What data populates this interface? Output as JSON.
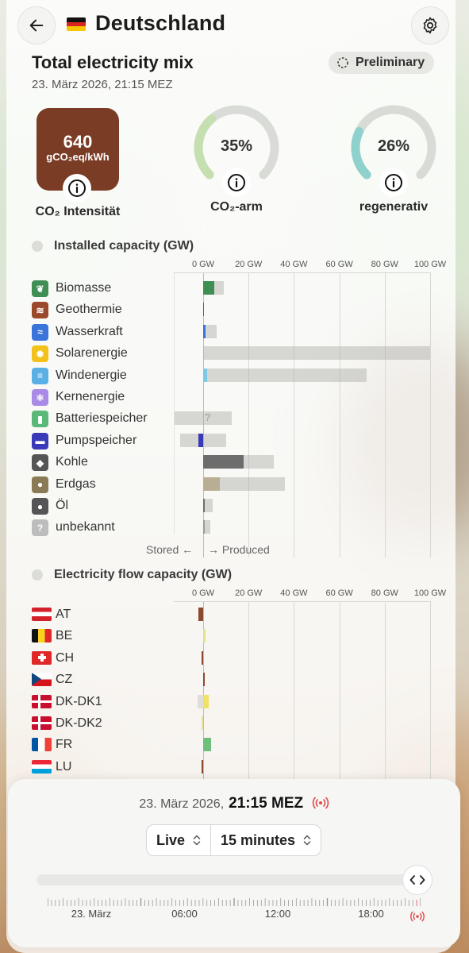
{
  "header": {
    "title": "Deutschland"
  },
  "mix": {
    "title": "Total electricity mix",
    "date": "23. März 2026, 21:15 MEZ",
    "badge": "Preliminary"
  },
  "metrics": {
    "co2_value": "640",
    "co2_unit": "gCO₂eq/kWh",
    "co2_label": "CO₂ Intensität",
    "low_carbon_value": "35%",
    "low_carbon_fraction": 0.35,
    "low_carbon_label": "CO₂-arm",
    "renewable_value": "26%",
    "renewable_fraction": 0.26,
    "renewable_label": "regenerativ"
  },
  "installed": {
    "title": "Installed capacity (GW)",
    "axis": [
      "0 GW",
      "20 GW",
      "40 GW",
      "60 GW",
      "80 GW",
      "100 GW"
    ],
    "stored_label": "Stored ←",
    "produced_label": "→ Produced",
    "unknown_mark": "?",
    "sources": [
      {
        "name": "Biomasse",
        "icon": "leaf-icon",
        "color": "#3f8f55",
        "produced": 4.8,
        "capacity": 9.2
      },
      {
        "name": "Geothermie",
        "icon": "geothermal-icon",
        "color": "#9a4a2a",
        "produced": 0.0,
        "capacity": 0.05
      },
      {
        "name": "Wasserkraft",
        "icon": "water-icon",
        "color": "#3a73d9",
        "produced": 1.0,
        "capacity": 6.0
      },
      {
        "name": "Solarenergie",
        "icon": "sun-icon",
        "color": "#f2c21b",
        "produced": 0.0,
        "capacity": 100
      },
      {
        "name": "Windenergie",
        "icon": "wind-icon",
        "color": "#7ec8ea",
        "produced": 1.8,
        "capacity": 72
      },
      {
        "name": "Kernenergie",
        "icon": "atom-icon",
        "color": "#a98ae6",
        "produced": 0.0,
        "capacity": 0
      },
      {
        "name": "Batteriespeicher",
        "icon": "battery-icon",
        "color": "#5ab978",
        "produced": 0.0,
        "capacity": 12.5,
        "stored": 12.5
      },
      {
        "name": "Pumpspeicher",
        "icon": "pump-storage-icon",
        "color": "#3a3ab8",
        "produced": 0.0,
        "capacity": 10,
        "stored": 10,
        "stored_used": 2.2
      },
      {
        "name": "Kohle",
        "icon": "coal-icon",
        "color": "#6d6d6d",
        "produced": 18,
        "capacity": 31
      },
      {
        "name": "Erdgas",
        "icon": "gas-icon",
        "color": "#b9ae94",
        "produced": 7.5,
        "capacity": 36
      },
      {
        "name": "Öl",
        "icon": "oil-icon",
        "color": "#6e6e6e",
        "produced": 0.4,
        "capacity": 4.2
      },
      {
        "name": "unbekannt",
        "icon": "unknown-icon",
        "color": "#9a9a9a",
        "produced": 0.2,
        "capacity": 3.3
      }
    ]
  },
  "flow": {
    "title": "Electricity flow capacity (GW)",
    "axis": [
      "0 GW",
      "20 GW",
      "40 GW",
      "60 GW",
      "80 GW",
      "100 GW"
    ],
    "countries": [
      {
        "code": "AT",
        "flag": "flag-at-icon",
        "color": "#8b4a2e",
        "value": -2.0,
        "capacity": 0
      },
      {
        "code": "BE",
        "flag": "flag-be-icon",
        "color": "#e5e08a",
        "value": 1.0,
        "capacity": 0
      },
      {
        "code": "CH",
        "flag": "flag-ch-icon",
        "color": "#8b4a2e",
        "value": -0.8,
        "capacity": 0
      },
      {
        "code": "CZ",
        "flag": "flag-cz-icon",
        "color": "#8b4a2e",
        "value": 0.6,
        "capacity": 0
      },
      {
        "code": "DK-DK1",
        "flag": "flag-dk-icon",
        "color": "#efe265",
        "value": 2.5,
        "capacity": -2.5
      },
      {
        "code": "DK-DK2",
        "flag": "flag-dk-icon",
        "color": "#e8dfa0",
        "value": -0.8,
        "capacity": 0
      },
      {
        "code": "FR",
        "flag": "flag-fr-icon",
        "color": "#6fbf7c",
        "value": 3.5,
        "capacity": 0
      },
      {
        "code": "LU",
        "flag": "flag-lu-icon",
        "color": "#8b4a2e",
        "value": -0.4,
        "capacity": 0
      }
    ]
  },
  "bottom": {
    "date": "23. März 2026,",
    "time": "21:15 MEZ",
    "mode": "Live",
    "interval": "15 minutes",
    "tick_labels": [
      "23. März",
      "06:00",
      "12:00",
      "18:00"
    ]
  }
}
